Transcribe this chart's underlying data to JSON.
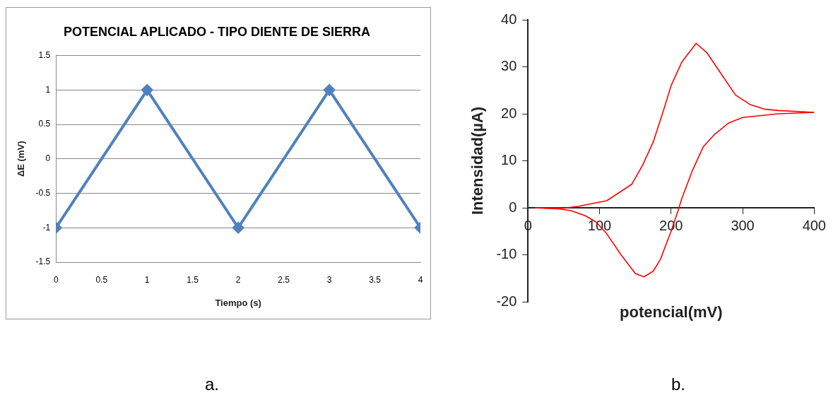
{
  "chart_data": [
    {
      "type": "line",
      "title": "POTENCIAL APLICADO - TIPO DIENTE DE SIERRA",
      "xlabel": "Tiempo (s)",
      "ylabel": "ΔE (mV)",
      "annotations": [
        "a."
      ],
      "x": [
        0,
        1,
        2,
        3,
        4
      ],
      "series": [
        {
          "color": "#4f81bd",
          "values": [
            -1,
            1,
            -1,
            1,
            -1
          ]
        }
      ],
      "xlim": [
        0,
        4
      ],
      "xticks": [
        0,
        0.5,
        1,
        1.5,
        2,
        2.5,
        3,
        3.5,
        4
      ],
      "ylim": [
        -1.5,
        1.5
      ],
      "yticks": [
        -1.5,
        -1,
        -0.5,
        0,
        0.5,
        1,
        1.5
      ],
      "grid": "y",
      "marker": "diamond"
    },
    {
      "type": "line",
      "xlabel": "potencial(mV)",
      "ylabel": "Intensidad(µA)",
      "annotations": [
        "b."
      ],
      "series": [
        {
          "color": "#ff0000",
          "x": [
            10,
            50,
            70,
            100,
            110,
            130,
            145,
            160,
            175,
            190,
            200,
            215,
            230,
            235,
            250,
            270,
            290,
            310,
            330,
            350,
            400
          ],
          "values": [
            0,
            -0.1,
            0.3,
            1.2,
            1.5,
            3.5,
            5,
            9,
            14,
            21,
            26,
            31,
            34,
            35,
            33,
            28.5,
            24,
            22,
            21,
            20.7,
            20.3
          ]
        },
        {
          "color": "#ff0000",
          "x": [
            10,
            40,
            60,
            80,
            95,
            110,
            130,
            150,
            162,
            175,
            185,
            200,
            210,
            215,
            230,
            245,
            260,
            280,
            300,
            350,
            400
          ],
          "values": [
            0,
            -0.2,
            -0.6,
            -1.7,
            -3,
            -5.5,
            -10,
            -14,
            -14.7,
            -13.5,
            -11,
            -5,
            -0.5,
            2,
            8,
            13,
            15.5,
            18,
            19.2,
            20,
            20.3
          ]
        }
      ],
      "xlim": [
        0,
        400
      ],
      "xticks": [
        0,
        100,
        200,
        300,
        400
      ],
      "ylim": [
        -20,
        40
      ],
      "yticks": [
        -20,
        -10,
        0,
        10,
        20,
        30,
        40
      ],
      "marker": "none"
    }
  ]
}
